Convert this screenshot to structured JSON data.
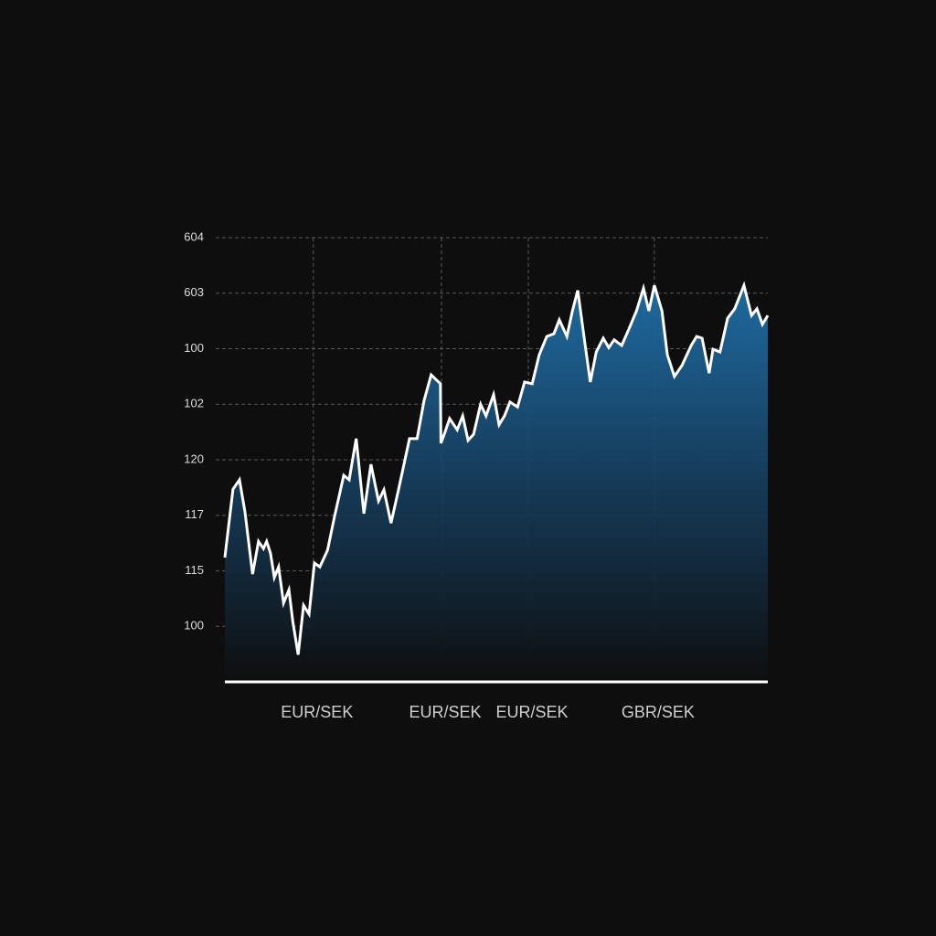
{
  "chart_data": {
    "type": "area",
    "x": [
      0,
      1.5,
      2.7,
      3.7,
      5.1,
      6.2,
      7.1,
      7.7,
      8.4,
      9.1,
      9.9,
      10.8,
      11.8,
      12.5,
      13.5,
      14.5,
      15.5,
      16.5,
      17.5,
      18.9,
      20.2,
      21.9,
      22.9,
      24.2,
      25.6,
      26.9,
      28.3,
      29.3,
      30.6,
      32.0,
      34.0,
      35.4,
      36.7,
      38.0,
      39.7,
      39.8,
      40.4,
      41.4,
      42.8,
      43.8,
      44.8,
      45.8,
      47.1,
      48.1,
      49.5,
      50.5,
      51.5,
      52.5,
      53.9,
      55.2,
      56.6,
      57.9,
      59.3,
      60.6,
      61.6,
      63.0,
      64.0,
      65.0,
      66.3,
      67.3,
      68.4,
      69.7,
      70.7,
      71.7,
      73.1,
      74.4,
      75.8,
      77.1,
      78.1,
      79.1,
      80.5,
      81.5,
      82.8,
      84.2,
      85.9,
      86.9,
      87.9,
      89.2,
      89.9,
      91.2,
      92.6,
      93.9,
      95.6,
      97.0,
      98.0,
      99.0,
      100
    ],
    "values": [
      2.24,
      3.47,
      3.64,
      3.06,
      1.94,
      2.53,
      2.4,
      2.53,
      2.32,
      1.88,
      2.07,
      1.42,
      1.66,
      1.09,
      0.49,
      1.38,
      1.22,
      2.14,
      2.07,
      2.37,
      2.98,
      3.72,
      3.64,
      4.38,
      3.03,
      3.92,
      3.26,
      3.46,
      2.86,
      3.47,
      4.38,
      4.38,
      5.07,
      5.53,
      5.37,
      4.3,
      4.46,
      4.74,
      4.54,
      4.79,
      4.35,
      4.46,
      5.0,
      4.79,
      5.17,
      4.63,
      4.79,
      5.04,
      4.95,
      5.4,
      5.37,
      5.89,
      6.22,
      6.27,
      6.52,
      6.22,
      6.68,
      7.05,
      6.11,
      5.4,
      5.94,
      6.19,
      6.02,
      6.16,
      6.06,
      6.35,
      6.68,
      7.09,
      6.68,
      7.14,
      6.68,
      5.89,
      5.5,
      5.7,
      6.06,
      6.22,
      6.19,
      5.56,
      5.99,
      5.94,
      6.55,
      6.72,
      7.14,
      6.6,
      6.72,
      6.44,
      6.6
    ],
    "color": "#1f6fa8",
    "line_color": "#ffffff",
    "xlim": [
      0,
      100
    ],
    "ylim": [
      0,
      8.5
    ],
    "xticks": [
      {
        "value": 16.3,
        "label": "EUR/SEK"
      },
      {
        "value": 39.9,
        "label": "EUR/SEK"
      },
      {
        "value": 55.9,
        "label": "EUR/SEK"
      },
      {
        "value": 79.1,
        "label": "GBR/SEK"
      }
    ],
    "yticks": [
      {
        "value": 8,
        "label": "604"
      },
      {
        "value": 7,
        "label": "603"
      },
      {
        "value": 6,
        "label": "100"
      },
      {
        "value": 5,
        "label": "102"
      },
      {
        "value": 4,
        "label": "120"
      },
      {
        "value": 3,
        "label": "117"
      },
      {
        "value": 2,
        "label": "115"
      },
      {
        "value": 1,
        "label": "100"
      }
    ],
    "grid": true
  }
}
